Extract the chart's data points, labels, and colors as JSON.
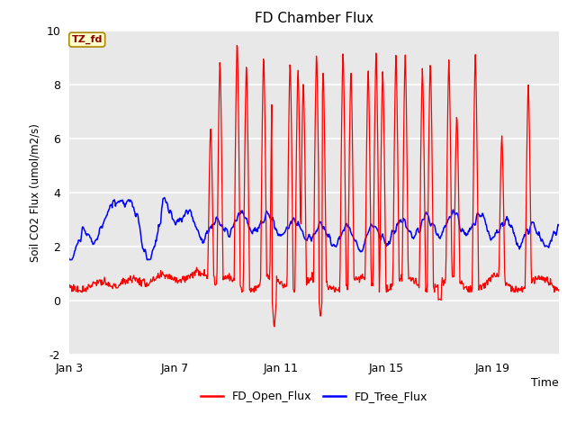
{
  "title": "FD Chamber Flux",
  "xlabel": "Time",
  "ylabel": "Soil CO2 Flux (umol/m2/s)",
  "ylim": [
    -2,
    10
  ],
  "bg_color": "#e8e8e8",
  "fig_bg": "#ffffff",
  "annotation_text": "TZ_fd",
  "annotation_bg": "#ffffcc",
  "annotation_edge": "#aa8800",
  "legend_entries": [
    "FD_Open_Flux",
    "FD_Tree_Flux"
  ],
  "line_colors": [
    "red",
    "blue"
  ],
  "xtick_labels": [
    "Jan 3",
    "Jan 7",
    "Jan 11",
    "Jan 15",
    "Jan 19"
  ],
  "xtick_positions": [
    3,
    7,
    11,
    15,
    19
  ],
  "ytick_labels": [
    "-2",
    "0",
    "2",
    "4",
    "6",
    "8",
    "10"
  ],
  "ytick_positions": [
    -2,
    0,
    2,
    4,
    6,
    8,
    10
  ],
  "start_day": 3,
  "end_day": 21.5
}
